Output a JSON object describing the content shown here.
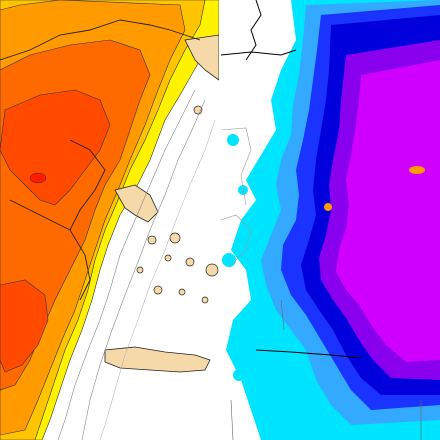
{
  "panels": [
    {
      "id": "temperature",
      "legend": [],
      "colors": {
        "sea_white": "#ffffff",
        "land_tan": "#f5d9a8",
        "yellow": "#fff200",
        "light_orange": "#ffc400",
        "orange": "#ff9a00",
        "dark_orange": "#ff6a00",
        "red_orange": "#ff4a00",
        "red": "#ff1a00"
      }
    },
    {
      "id": "precipitation",
      "legend": [],
      "colors": {
        "sea_white": "#ffffff",
        "cyan": "#00e5ff",
        "light_blue": "#33aaff",
        "blue": "#1a33ff",
        "dark_blue": "#0000dd",
        "purple": "#8800ee",
        "magenta": "#d000ff",
        "orange_cell": "#ff9a00"
      }
    }
  ]
}
